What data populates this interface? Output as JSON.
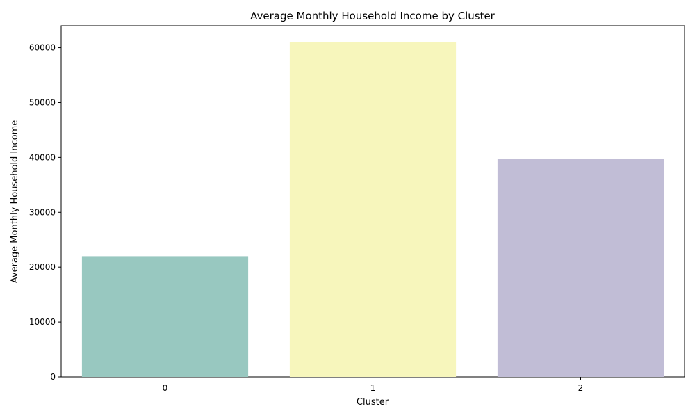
{
  "chart_data": {
    "type": "bar",
    "title": "Average Monthly Household Income by Cluster",
    "xlabel": "Cluster",
    "ylabel": "Average Monthly Household Income",
    "categories": [
      "0",
      "1",
      "2"
    ],
    "values": [
      22000,
      61000,
      39700
    ],
    "colors": [
      "#98c8c0",
      "#f7f6bc",
      "#c1bdd6"
    ],
    "ylim": [
      0,
      64000
    ],
    "yticks": [
      0,
      10000,
      20000,
      30000,
      40000,
      50000,
      60000
    ],
    "ytick_labels": [
      "0",
      "10000",
      "20000",
      "30000",
      "40000",
      "50000",
      "60000"
    ],
    "grid": false,
    "legend": "none"
  }
}
